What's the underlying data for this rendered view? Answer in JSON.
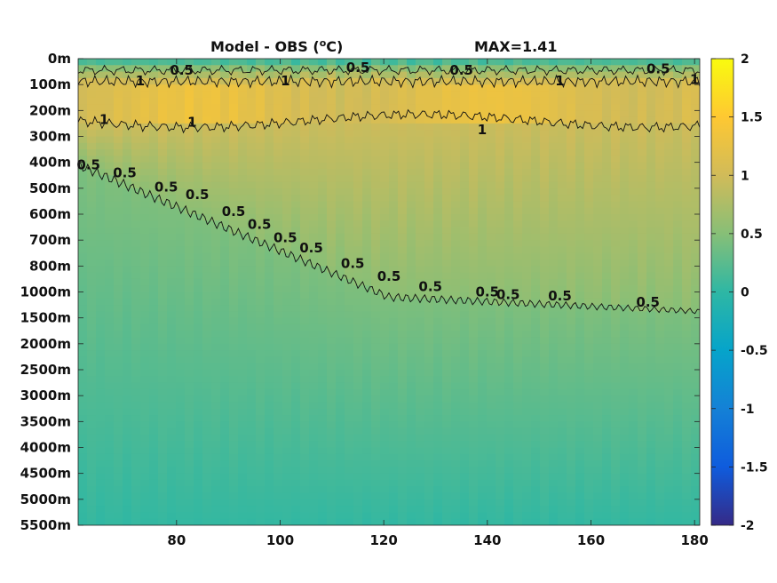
{
  "chart_data": {
    "type": "heatmap",
    "title": "Model - OBS (",
    "title_unit": "C)",
    "title_degree": "o",
    "max_label": "MAX=1.41",
    "xlim": [
      61,
      181
    ],
    "x_ticks": [
      80,
      100,
      120,
      140,
      160,
      180
    ],
    "y_ticks": [
      "0m",
      "100m",
      "200m",
      "300m",
      "400m",
      "500m",
      "600m",
      "700m",
      "800m",
      "1000m",
      "1500m",
      "2000m",
      "2500m",
      "3000m",
      "3500m",
      "4000m",
      "4500m",
      "5000m",
      "5500m"
    ],
    "colorbar": {
      "colormap": "parula",
      "range": [
        -2,
        2
      ],
      "ticks": [
        "2",
        "1.5",
        "1",
        "0.5",
        "0",
        "-0.5",
        "-1",
        "-1.5",
        "-2"
      ]
    },
    "contours": [
      {
        "level": 0.5,
        "label": "0.5",
        "description": "near-surface 0.5 contour at about 30 m"
      },
      {
        "level": 1,
        "label": "1",
        "description": "upper 1 contour near 100 m"
      },
      {
        "level": 1,
        "label": "1",
        "description": "lower 1 contour near 250 m"
      },
      {
        "level": 0.5,
        "label": "0.5",
        "description": "deep 0.5 contour from 400 m at x=61 descending to about 1500 m at x=181"
      }
    ],
    "contour_labels": [
      {
        "text": "0.5",
        "x": 81,
        "y": 0.45
      },
      {
        "text": "0.5",
        "x": 115,
        "y": 0.35
      },
      {
        "text": "0.5",
        "x": 135,
        "y": 0.45
      },
      {
        "text": "0.5",
        "x": 173,
        "y": 0.4
      },
      {
        "text": "1",
        "x": 73,
        "y": 0.85
      },
      {
        "text": "1",
        "x": 101,
        "y": 0.85
      },
      {
        "text": "1",
        "x": 154,
        "y": 0.85
      },
      {
        "text": "1",
        "x": 180,
        "y": 0.8
      },
      {
        "text": "1",
        "x": 66,
        "y": 2.35
      },
      {
        "text": "1",
        "x": 83,
        "y": 2.45
      },
      {
        "text": "1",
        "x": 139,
        "y": 2.75
      },
      {
        "text": "0.5",
        "x": 63,
        "y": 4.1
      },
      {
        "text": "0.5",
        "x": 70,
        "y": 4.4
      },
      {
        "text": "0.5",
        "x": 78,
        "y": 4.95
      },
      {
        "text": "0.5",
        "x": 84,
        "y": 5.25
      },
      {
        "text": "0.5",
        "x": 91,
        "y": 5.9
      },
      {
        "text": "0.5",
        "x": 96,
        "y": 6.4
      },
      {
        "text": "0.5",
        "x": 101,
        "y": 6.9
      },
      {
        "text": "0.5",
        "x": 106,
        "y": 7.3
      },
      {
        "text": "0.5",
        "x": 114,
        "y": 7.9
      },
      {
        "text": "0.5",
        "x": 121,
        "y": 8.4
      },
      {
        "text": "0.5",
        "x": 129,
        "y": 8.8
      },
      {
        "text": "0.5",
        "x": 140,
        "y": 9.0
      },
      {
        "text": "0.5",
        "x": 144,
        "y": 9.1
      },
      {
        "text": "0.5",
        "x": 154,
        "y": 9.15
      },
      {
        "text": "0.5",
        "x": 171,
        "y": 9.4
      }
    ]
  }
}
